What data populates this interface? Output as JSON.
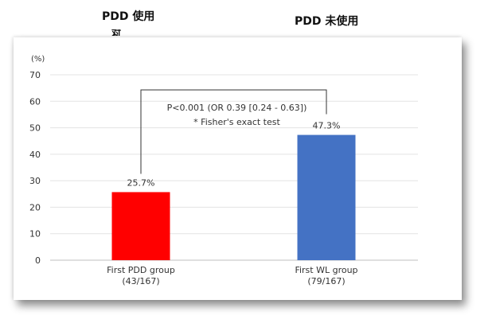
{
  "captions": {
    "left": "PDD 使用",
    "right": "PDD 未使用"
  },
  "chart_data": {
    "type": "bar",
    "ylabel": "(%)",
    "ylim": [
      0,
      70
    ],
    "yticks": [
      0,
      10,
      20,
      30,
      40,
      50,
      60,
      70
    ],
    "grid": true,
    "categories": [
      "First PDD group",
      "First WL group"
    ],
    "sublabels": [
      "(43/167)",
      "(79/167)"
    ],
    "values": [
      25.7,
      47.3
    ],
    "value_labels": [
      "25.7%",
      "47.3%"
    ],
    "colors": [
      "#ff0000",
      "#4472c4"
    ],
    "annotation": {
      "line1": "P<0.001 (OR 0.39 [0.24 - 0.63])",
      "line2": "* Fisher's exact test"
    }
  }
}
